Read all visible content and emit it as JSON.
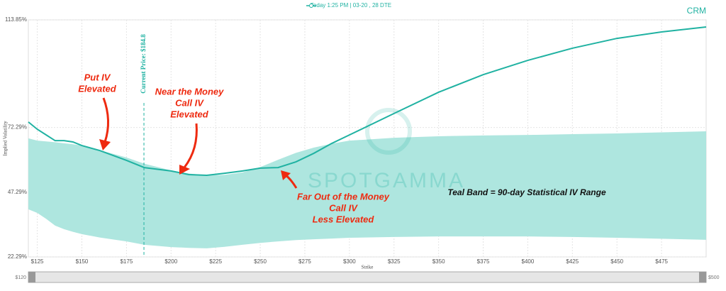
{
  "chart_data": {
    "type": "line",
    "ticker": "CRM",
    "ylabel": "Implied Volatility",
    "xlabel": "Strike",
    "watermark": "SPOTGAMMA",
    "range_labels": [
      "$120",
      "$500"
    ],
    "x": [
      120,
      125,
      130,
      135,
      140,
      145,
      150,
      160,
      175,
      185,
      200,
      210,
      220,
      230,
      240,
      250,
      260,
      270,
      280,
      290,
      300,
      325,
      350,
      375,
      400,
      425,
      450,
      475,
      500
    ],
    "series": [
      {
        "name": "Today 1:25 PM | 03-20 , 28 DTE",
        "color": "#20b2a2",
        "values": [
          74.4,
          71.6,
          69.4,
          67.2,
          67.2,
          66.7,
          65.3,
          63.4,
          59.6,
          56.8,
          55.5,
          54.1,
          53.8,
          54.6,
          55.5,
          56.6,
          56.8,
          59.0,
          62.3,
          66.1,
          69.4,
          77.7,
          85.9,
          92.7,
          98.2,
          102.9,
          106.7,
          109.2,
          111.1
        ]
      }
    ],
    "band": {
      "color": "#aee6df",
      "upper": [
        68.1,
        67.2,
        66.9,
        66.6,
        66.2,
        65.8,
        65.3,
        63.5,
        60.7,
        58.3,
        55.7,
        54.5,
        53.8,
        54.0,
        54.9,
        57.0,
        59.8,
        62.5,
        64.5,
        66.0,
        67.2,
        68.3,
        68.9,
        69.2,
        69.4,
        69.7,
        70.0,
        70.4,
        70.8
      ],
      "lower": [
        40.7,
        39.3,
        37.0,
        34.4,
        33.0,
        32.0,
        31.1,
        29.8,
        28.3,
        27.0,
        26.1,
        25.8,
        25.6,
        26.2,
        27.0,
        27.7,
        28.3,
        28.8,
        29.1,
        29.4,
        29.7,
        30.0,
        30.2,
        30.2,
        30.2,
        30.0,
        29.7,
        29.3,
        28.9
      ]
    },
    "current_price": {
      "value": 184.8,
      "label": "Current Price: $184.8",
      "color": "#20b2a2"
    },
    "xlim": [
      120,
      500
    ],
    "ylim": [
      22.29,
      113.85
    ],
    "xticks": [
      {
        "value": 125,
        "label": "$125"
      },
      {
        "value": 150,
        "label": "$150"
      },
      {
        "value": 175,
        "label": "$175"
      },
      {
        "value": 200,
        "label": "$200"
      },
      {
        "value": 225,
        "label": "$225"
      },
      {
        "value": 250,
        "label": "$250"
      },
      {
        "value": 275,
        "label": "$275"
      },
      {
        "value": 300,
        "label": "$300"
      },
      {
        "value": 325,
        "label": "$325"
      },
      {
        "value": 350,
        "label": "$350"
      },
      {
        "value": 375,
        "label": "$375"
      },
      {
        "value": 400,
        "label": "$400"
      },
      {
        "value": 425,
        "label": "$425"
      },
      {
        "value": 450,
        "label": "$450"
      },
      {
        "value": 475,
        "label": "$475"
      }
    ],
    "yticks": [
      {
        "value": 22.29,
        "label": "22.29%"
      },
      {
        "value": 47.29,
        "label": "47.29%"
      },
      {
        "value": 72.29,
        "label": "72.29%"
      },
      {
        "value": 113.85,
        "label": "113.85%"
      }
    ],
    "grid": true,
    "annotations": [
      {
        "lines": [
          "Put IV",
          "Elevated"
        ]
      },
      {
        "lines": [
          "Near the Money",
          "Call IV",
          "Elevated"
        ]
      },
      {
        "lines": [
          "Far Out of the Money",
          "Call IV",
          "Less Elevated"
        ]
      },
      {
        "lines": [
          "Teal Band = 90-day Statistical IV Range"
        ]
      }
    ]
  }
}
